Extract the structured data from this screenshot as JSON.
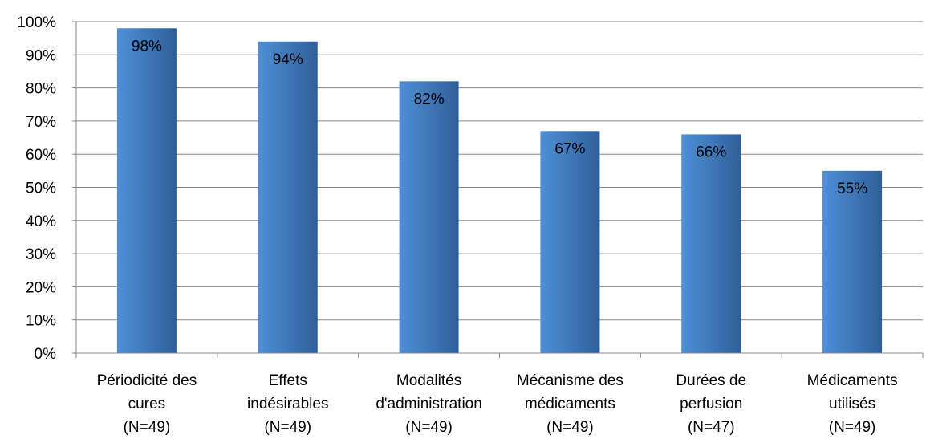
{
  "chart_data": {
    "type": "bar",
    "categories": [
      [
        "Périodicité des",
        "cures",
        "(N=49)"
      ],
      [
        "Effets",
        "indésirables",
        "(N=49)"
      ],
      [
        "Modalités",
        "d'administration",
        "(N=49)"
      ],
      [
        "Mécanisme des",
        "médicaments",
        "(N=49)"
      ],
      [
        "Durées de",
        "perfusion",
        "(N=47)"
      ],
      [
        "Médicaments",
        "utilisés",
        "(N=49)"
      ]
    ],
    "values": [
      98,
      94,
      82,
      67,
      66,
      55
    ],
    "value_labels": [
      "98%",
      "94%",
      "82%",
      "67%",
      "66%",
      "55%"
    ],
    "ylim": [
      0,
      100
    ],
    "yticks": [
      "0%",
      "10%",
      "20%",
      "30%",
      "40%",
      "50%",
      "60%",
      "70%",
      "80%",
      "90%",
      "100%"
    ],
    "grid": true,
    "legend": "none",
    "colors": {
      "bar_light": "#4f8fd6",
      "bar_dark": "#2f5f99",
      "grid": "#878787",
      "axis": "#878787"
    }
  }
}
